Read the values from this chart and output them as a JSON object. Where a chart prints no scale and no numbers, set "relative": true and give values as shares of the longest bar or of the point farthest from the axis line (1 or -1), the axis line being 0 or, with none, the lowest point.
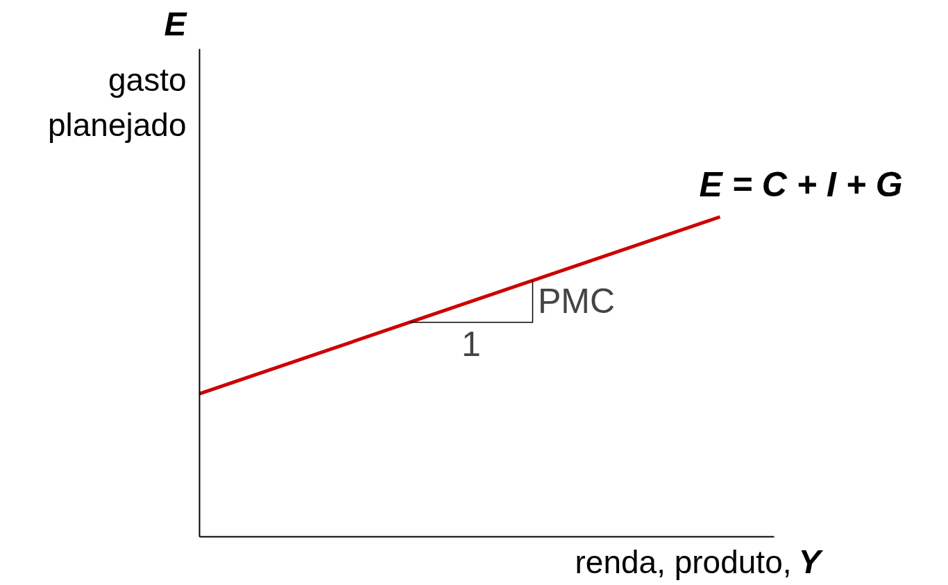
{
  "chart_data": {
    "type": "line",
    "relative": true,
    "categories": [
      null,
      null
    ],
    "ylabel": "E gasto planejado",
    "xlabel": "renda, produto, Y",
    "series": [
      {
        "name": "E = C + I + G",
        "color": "#cc0000",
        "values": [
          0.447,
          1
        ]
      }
    ],
    "annotations": [
      "PMC",
      "1"
    ],
    "grid": false,
    "legend": false,
    "marker": "none",
    "line_style": "solid"
  }
}
